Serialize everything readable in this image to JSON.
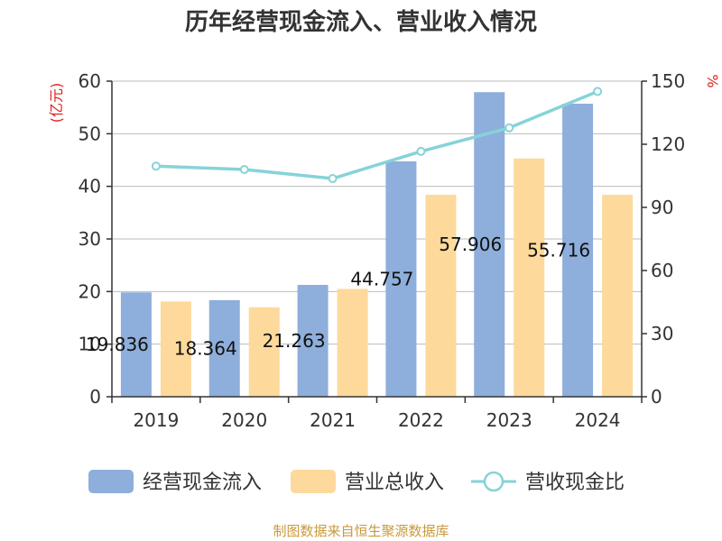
{
  "chart_data": {
    "type": "bar",
    "title": "历年经营现金流入、营业收入情况",
    "categories": [
      "2019",
      "2020",
      "2021",
      "2022",
      "2023",
      "2024"
    ],
    "series": [
      {
        "name": "经营现金流入",
        "kind": "bar",
        "axis": "left",
        "color": "#8eaedb",
        "values": [
          19.836,
          18.364,
          21.263,
          44.757,
          57.906,
          55.716
        ]
      },
      {
        "name": "营业总收入",
        "kind": "bar",
        "axis": "left",
        "color": "#fdd99b",
        "values": [
          18.1,
          17.0,
          20.5,
          38.4,
          45.3,
          38.4
        ]
      },
      {
        "name": "营收现金比",
        "kind": "line",
        "axis": "right",
        "color": "#86d3d8",
        "values": [
          109.6,
          108.0,
          103.7,
          116.6,
          127.8,
          145.1
        ]
      }
    ],
    "y_left": {
      "label": "(亿元)",
      "min": 0,
      "max": 60,
      "ticks": [
        0,
        10,
        20,
        30,
        40,
        50,
        60
      ]
    },
    "y_right": {
      "label": "%",
      "min": 0,
      "max": 150,
      "ticks": [
        0,
        30,
        60,
        90,
        120,
        150
      ]
    },
    "data_labels": [
      "19.836",
      "18.364",
      "21.263",
      "44.757",
      "57.906",
      "55.716"
    ],
    "grid": true,
    "legend_position": "bottom"
  },
  "source": "制图数据来自恒生聚源数据库"
}
